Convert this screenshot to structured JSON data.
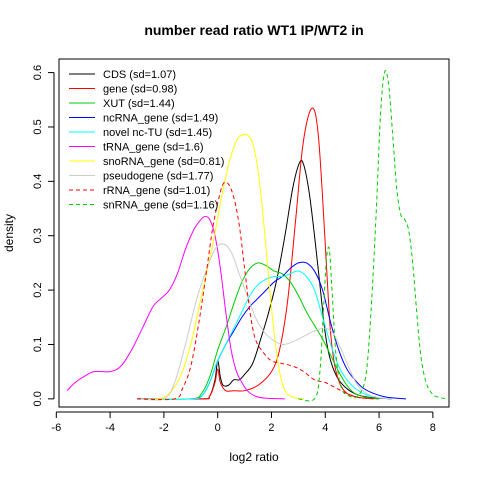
{
  "chart_data": {
    "type": "line",
    "title": "number read ratio WT1 IP/WT2 in",
    "xlabel": "log2 ratio",
    "ylabel": "density",
    "xlim": [
      -5.9,
      8.6
    ],
    "ylim": [
      -0.015,
      0.625
    ],
    "x_ticks": [
      -6,
      -4,
      -2,
      0,
      2,
      4,
      6,
      8
    ],
    "y_ticks": [
      0.0,
      0.1,
      0.2,
      0.3,
      0.4,
      0.5,
      0.6
    ],
    "x_tick_labels": [
      "-6",
      "-4",
      "-2",
      "0",
      "2",
      "4",
      "6",
      "8"
    ],
    "y_tick_labels": [
      "0.0",
      "0.1",
      "0.2",
      "0.3",
      "0.4",
      "0.5",
      "0.6"
    ],
    "legend_position": "top-left",
    "grid": false,
    "series": [
      {
        "name": "CDS (sd=1.07)",
        "color": "#000000",
        "dash": "solid",
        "points": [
          [
            -3,
            0
          ],
          [
            -0.6,
            0
          ],
          [
            -0.3,
            0.005
          ],
          [
            -0.1,
            0.035
          ],
          [
            0,
            0.07
          ],
          [
            0.1,
            0.04
          ],
          [
            0.2,
            0.025
          ],
          [
            0.4,
            0.025
          ],
          [
            0.6,
            0.035
          ],
          [
            0.8,
            0.035
          ],
          [
            1.0,
            0.045
          ],
          [
            1.3,
            0.065
          ],
          [
            1.6,
            0.11
          ],
          [
            1.9,
            0.16
          ],
          [
            2.2,
            0.22
          ],
          [
            2.5,
            0.3
          ],
          [
            2.8,
            0.39
          ],
          [
            3.05,
            0.435
          ],
          [
            3.2,
            0.43
          ],
          [
            3.4,
            0.38
          ],
          [
            3.6,
            0.3
          ],
          [
            3.8,
            0.21
          ],
          [
            4.0,
            0.12
          ],
          [
            4.2,
            0.07
          ],
          [
            4.5,
            0.035
          ],
          [
            5.0,
            0.012
          ],
          [
            5.6,
            0.003
          ],
          [
            6.5,
            0
          ]
        ]
      },
      {
        "name": "gene (sd=0.98)",
        "color": "#ff0000",
        "dash": "solid",
        "points": [
          [
            -3,
            0
          ],
          [
            -0.6,
            0
          ],
          [
            -0.3,
            0.005
          ],
          [
            -0.1,
            0.03
          ],
          [
            0,
            0.055
          ],
          [
            0.1,
            0.03
          ],
          [
            0.3,
            0.015
          ],
          [
            0.6,
            0.015
          ],
          [
            1.0,
            0.015
          ],
          [
            1.5,
            0.025
          ],
          [
            2.0,
            0.05
          ],
          [
            2.3,
            0.09
          ],
          [
            2.6,
            0.18
          ],
          [
            2.9,
            0.33
          ],
          [
            3.15,
            0.46
          ],
          [
            3.4,
            0.525
          ],
          [
            3.6,
            0.53
          ],
          [
            3.75,
            0.48
          ],
          [
            3.9,
            0.37
          ],
          [
            4.05,
            0.24
          ],
          [
            4.2,
            0.12
          ],
          [
            4.4,
            0.05
          ],
          [
            4.7,
            0.015
          ],
          [
            5.2,
            0.003
          ],
          [
            6.0,
            0
          ]
        ]
      },
      {
        "name": "XUT (sd=1.44)",
        "color": "#00cc00",
        "dash": "solid",
        "points": [
          [
            -3,
            0
          ],
          [
            -1.0,
            0
          ],
          [
            -0.6,
            0.01
          ],
          [
            -0.3,
            0.04
          ],
          [
            0,
            0.09
          ],
          [
            0.3,
            0.13
          ],
          [
            0.6,
            0.175
          ],
          [
            0.9,
            0.215
          ],
          [
            1.2,
            0.24
          ],
          [
            1.5,
            0.25
          ],
          [
            1.8,
            0.245
          ],
          [
            2.1,
            0.235
          ],
          [
            2.4,
            0.23
          ],
          [
            2.7,
            0.215
          ],
          [
            3.0,
            0.19
          ],
          [
            3.3,
            0.16
          ],
          [
            3.6,
            0.135
          ],
          [
            3.9,
            0.11
          ],
          [
            4.2,
            0.08
          ],
          [
            4.5,
            0.05
          ],
          [
            4.8,
            0.025
          ],
          [
            5.1,
            0.01
          ],
          [
            5.5,
            0.003
          ],
          [
            6.0,
            0
          ]
        ]
      },
      {
        "name": "ncRNA_gene (sd=1.49)",
        "color": "#0000ff",
        "dash": "solid",
        "points": [
          [
            -3,
            0
          ],
          [
            -1.0,
            0
          ],
          [
            -0.6,
            0.005
          ],
          [
            -0.3,
            0.03
          ],
          [
            0,
            0.07
          ],
          [
            0.3,
            0.1
          ],
          [
            0.6,
            0.125
          ],
          [
            0.9,
            0.15
          ],
          [
            1.2,
            0.17
          ],
          [
            1.5,
            0.185
          ],
          [
            1.8,
            0.2
          ],
          [
            2.1,
            0.215
          ],
          [
            2.4,
            0.225
          ],
          [
            2.7,
            0.24
          ],
          [
            3.0,
            0.25
          ],
          [
            3.3,
            0.25
          ],
          [
            3.6,
            0.235
          ],
          [
            3.9,
            0.2
          ],
          [
            4.2,
            0.14
          ],
          [
            4.5,
            0.09
          ],
          [
            4.8,
            0.055
          ],
          [
            5.1,
            0.035
          ],
          [
            5.4,
            0.02
          ],
          [
            5.8,
            0.01
          ],
          [
            6.3,
            0.003
          ],
          [
            7.0,
            0
          ]
        ]
      },
      {
        "name": "novel nc-TU (sd=1.45)",
        "color": "#00ffff",
        "dash": "solid",
        "points": [
          [
            -3,
            0
          ],
          [
            -1.0,
            0
          ],
          [
            -0.6,
            0.005
          ],
          [
            -0.3,
            0.03
          ],
          [
            0,
            0.07
          ],
          [
            0.3,
            0.1
          ],
          [
            0.6,
            0.13
          ],
          [
            0.9,
            0.16
          ],
          [
            1.2,
            0.19
          ],
          [
            1.5,
            0.21
          ],
          [
            1.8,
            0.22
          ],
          [
            2.1,
            0.225
          ],
          [
            2.4,
            0.225
          ],
          [
            2.7,
            0.23
          ],
          [
            3.0,
            0.235
          ],
          [
            3.3,
            0.225
          ],
          [
            3.6,
            0.2
          ],
          [
            3.9,
            0.15
          ],
          [
            4.2,
            0.1
          ],
          [
            4.5,
            0.06
          ],
          [
            4.8,
            0.035
          ],
          [
            5.1,
            0.02
          ],
          [
            5.5,
            0.008
          ],
          [
            6.0,
            0.002
          ],
          [
            6.5,
            0
          ]
        ]
      },
      {
        "name": "tRNA_gene (sd=1.6)",
        "color": "#ff00ff",
        "dash": "solid",
        "points": [
          [
            -5.6,
            0.015
          ],
          [
            -5.3,
            0.03
          ],
          [
            -5.0,
            0.04
          ],
          [
            -4.6,
            0.05
          ],
          [
            -4.0,
            0.05
          ],
          [
            -3.6,
            0.06
          ],
          [
            -3.2,
            0.09
          ],
          [
            -2.8,
            0.13
          ],
          [
            -2.4,
            0.17
          ],
          [
            -2.1,
            0.185
          ],
          [
            -1.8,
            0.2
          ],
          [
            -1.5,
            0.23
          ],
          [
            -1.2,
            0.275
          ],
          [
            -0.9,
            0.31
          ],
          [
            -0.7,
            0.325
          ],
          [
            -0.5,
            0.335
          ],
          [
            -0.3,
            0.33
          ],
          [
            -0.1,
            0.3
          ],
          [
            0.1,
            0.24
          ],
          [
            0.3,
            0.16
          ],
          [
            0.5,
            0.09
          ],
          [
            0.7,
            0.05
          ],
          [
            0.9,
            0.03
          ],
          [
            1.1,
            0.015
          ],
          [
            1.4,
            0.005
          ],
          [
            1.8,
            0.001
          ],
          [
            2.5,
            0
          ]
        ]
      },
      {
        "name": "snoRNA_gene (sd=0.81)",
        "color": "#ffff00",
        "dash": "solid",
        "points": [
          [
            -3,
            0
          ],
          [
            -2.2,
            0
          ],
          [
            -1.8,
            0.01
          ],
          [
            -1.4,
            0.04
          ],
          [
            -1.0,
            0.1
          ],
          [
            -0.6,
            0.19
          ],
          [
            -0.2,
            0.28
          ],
          [
            0.1,
            0.36
          ],
          [
            0.4,
            0.43
          ],
          [
            0.7,
            0.475
          ],
          [
            0.9,
            0.485
          ],
          [
            1.1,
            0.485
          ],
          [
            1.3,
            0.47
          ],
          [
            1.5,
            0.42
          ],
          [
            1.7,
            0.33
          ],
          [
            1.9,
            0.22
          ],
          [
            2.1,
            0.12
          ],
          [
            2.3,
            0.05
          ],
          [
            2.5,
            0.015
          ],
          [
            2.8,
            0.003
          ],
          [
            3.2,
            0
          ]
        ]
      },
      {
        "name": "pseudogene (sd=1.77)",
        "color": "#cccccc",
        "dash": "solid",
        "points": [
          [
            -3,
            0
          ],
          [
            -2.0,
            0
          ],
          [
            -1.6,
            0.03
          ],
          [
            -1.2,
            0.1
          ],
          [
            -0.8,
            0.18
          ],
          [
            -0.4,
            0.24
          ],
          [
            -0.1,
            0.275
          ],
          [
            0.2,
            0.285
          ],
          [
            0.5,
            0.27
          ],
          [
            0.8,
            0.23
          ],
          [
            1.1,
            0.19
          ],
          [
            1.4,
            0.15
          ],
          [
            1.7,
            0.125
          ],
          [
            2.0,
            0.11
          ],
          [
            2.4,
            0.1
          ],
          [
            2.8,
            0.105
          ],
          [
            3.2,
            0.115
          ],
          [
            3.6,
            0.125
          ],
          [
            4.0,
            0.13
          ],
          [
            4.3,
            0.12
          ],
          [
            4.6,
            0.09
          ],
          [
            4.9,
            0.055
          ],
          [
            5.2,
            0.025
          ],
          [
            5.6,
            0.008
          ],
          [
            6.0,
            0.002
          ],
          [
            6.5,
            0
          ]
        ]
      },
      {
        "name": "rRNA_gene (sd=1.01)",
        "color": "#ff0000",
        "dash": "dashed",
        "points": [
          [
            -3,
            0
          ],
          [
            -1.6,
            0
          ],
          [
            -1.3,
            0.02
          ],
          [
            -1.0,
            0.06
          ],
          [
            -0.7,
            0.14
          ],
          [
            -0.4,
            0.24
          ],
          [
            -0.2,
            0.31
          ],
          [
            0,
            0.36
          ],
          [
            0.2,
            0.395
          ],
          [
            0.4,
            0.395
          ],
          [
            0.6,
            0.37
          ],
          [
            0.8,
            0.32
          ],
          [
            1.0,
            0.24
          ],
          [
            1.2,
            0.16
          ],
          [
            1.4,
            0.11
          ],
          [
            1.7,
            0.085
          ],
          [
            2.0,
            0.07
          ],
          [
            2.4,
            0.065
          ],
          [
            2.8,
            0.06
          ],
          [
            3.2,
            0.05
          ],
          [
            3.6,
            0.035
          ],
          [
            4.0,
            0.03
          ],
          [
            4.4,
            0.02
          ],
          [
            4.8,
            0.01
          ],
          [
            5.2,
            0.003
          ],
          [
            5.8,
            0
          ]
        ]
      },
      {
        "name": "snRNA_gene (sd=1.16)",
        "color": "#00cc00",
        "dash": "dashed",
        "points": [
          [
            3,
            0
          ],
          [
            3.6,
            0
          ],
          [
            3.8,
            0.05
          ],
          [
            3.95,
            0.18
          ],
          [
            4.05,
            0.26
          ],
          [
            4.15,
            0.275
          ],
          [
            4.25,
            0.2
          ],
          [
            4.4,
            0.08
          ],
          [
            4.6,
            0.02
          ],
          [
            4.9,
            0.005
          ],
          [
            5.2,
            0.005
          ],
          [
            5.5,
            0.04
          ],
          [
            5.7,
            0.16
          ],
          [
            5.9,
            0.35
          ],
          [
            6.05,
            0.52
          ],
          [
            6.2,
            0.6
          ],
          [
            6.35,
            0.58
          ],
          [
            6.5,
            0.49
          ],
          [
            6.65,
            0.39
          ],
          [
            6.8,
            0.34
          ],
          [
            6.95,
            0.33
          ],
          [
            7.1,
            0.31
          ],
          [
            7.25,
            0.25
          ],
          [
            7.4,
            0.16
          ],
          [
            7.55,
            0.08
          ],
          [
            7.75,
            0.03
          ],
          [
            8.0,
            0.008
          ],
          [
            8.3,
            0.002
          ],
          [
            8.6,
            0
          ]
        ]
      }
    ]
  }
}
